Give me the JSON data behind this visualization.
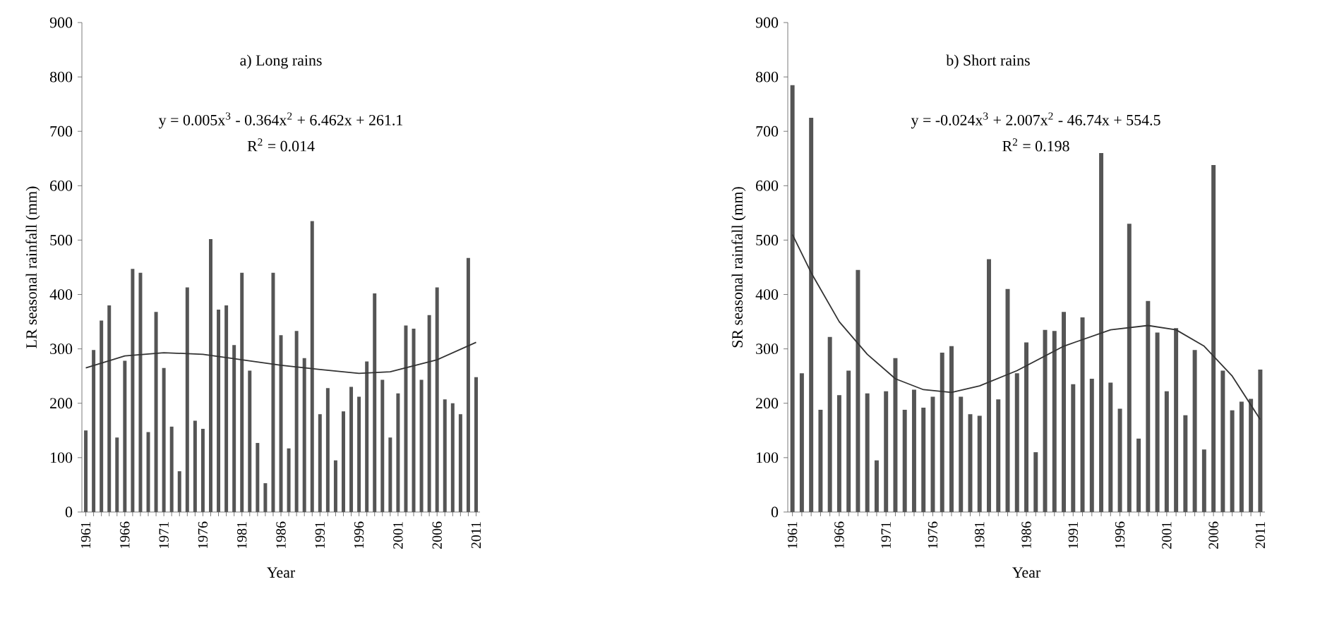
{
  "chart_data": [
    {
      "type": "bar",
      "title": "a) Long rains",
      "xlabel": "Year",
      "ylabel": "LR seasonal rainfall (mm)",
      "x": [
        1961,
        1962,
        1963,
        1964,
        1965,
        1966,
        1967,
        1968,
        1969,
        1970,
        1971,
        1972,
        1973,
        1974,
        1975,
        1976,
        1977,
        1978,
        1979,
        1980,
        1981,
        1982,
        1983,
        1984,
        1985,
        1986,
        1987,
        1988,
        1989,
        1990,
        1991,
        1992,
        1993,
        1994,
        1995,
        1996,
        1997,
        1998,
        1999,
        2000,
        2001,
        2002,
        2003,
        2004,
        2005,
        2006,
        2007,
        2008,
        2009,
        2010,
        2011
      ],
      "series": [
        {
          "color": "#555555",
          "values": [
            150,
            298,
            352,
            380,
            137,
            278,
            447,
            440,
            147,
            368,
            265,
            157,
            75,
            413,
            168,
            153,
            502,
            372,
            380,
            307,
            440,
            260,
            127,
            53,
            440,
            325,
            117,
            333,
            283,
            535,
            180,
            228,
            95,
            185,
            230,
            212,
            277,
            402,
            243,
            137,
            218,
            343,
            337,
            243,
            362,
            413,
            207,
            200,
            180,
            467,
            248
          ]
        },
        {
          "type": "line",
          "color": "#333333",
          "x": [
            1961,
            1966,
            1971,
            1976,
            1981,
            1986,
            1991,
            1996,
            2000,
            2006,
            2011
          ],
          "values": [
            265,
            287,
            293,
            290,
            280,
            270,
            262,
            255,
            258,
            280,
            312
          ]
        }
      ],
      "xlim": [
        1960.5,
        2011.5
      ],
      "xticks": [
        1961,
        {
          "value": 1962,
          "label": null
        },
        {
          "value": 1963,
          "label": null
        },
        {
          "value": 1964,
          "label": null
        },
        {
          "value": 1965,
          "label": null
        },
        1966,
        {
          "value": 1967,
          "label": null
        },
        {
          "value": 1968,
          "label": null
        },
        {
          "value": 1969,
          "label": null
        },
        {
          "value": 1970,
          "label": null
        },
        1971,
        {
          "value": 1972,
          "label": null
        },
        {
          "value": 1973,
          "label": null
        },
        {
          "value": 1974,
          "label": null
        },
        {
          "value": 1975,
          "label": null
        },
        1976,
        {
          "value": 1977,
          "label": null
        },
        {
          "value": 1978,
          "label": null
        },
        {
          "value": 1979,
          "label": null
        },
        {
          "value": 1980,
          "label": null
        },
        1981,
        {
          "value": 1982,
          "label": null
        },
        {
          "value": 1983,
          "label": null
        },
        {
          "value": 1984,
          "label": null
        },
        {
          "value": 1985,
          "label": null
        },
        1986,
        {
          "value": 1987,
          "label": null
        },
        {
          "value": 1988,
          "label": null
        },
        {
          "value": 1989,
          "label": null
        },
        {
          "value": 1990,
          "label": null
        },
        1991,
        {
          "value": 1992,
          "label": null
        },
        {
          "value": 1993,
          "label": null
        },
        {
          "value": 1994,
          "label": null
        },
        {
          "value": 1995,
          "label": null
        },
        1996,
        {
          "value": 1997,
          "label": null
        },
        {
          "value": 1998,
          "label": null
        },
        {
          "value": 1999,
          "label": null
        },
        {
          "value": 2000,
          "label": null
        },
        2001,
        {
          "value": 2002,
          "label": null
        },
        {
          "value": 2003,
          "label": null
        },
        {
          "value": 2004,
          "label": null
        },
        {
          "value": 2005,
          "label": null
        },
        2006,
        {
          "value": 2007,
          "label": null
        },
        {
          "value": 2008,
          "label": null
        },
        {
          "value": 2009,
          "label": null
        },
        {
          "value": 2010,
          "label": null
        },
        2011
      ],
      "ylim": [
        0,
        900
      ],
      "yticks": [
        0,
        100,
        200,
        300,
        400,
        500,
        600,
        700,
        800,
        900
      ],
      "annotations": [
        "y = 0.005x$^{3}$ - 0.364x$^{2}$ + 6.462x + 261.1",
        "R$^{2}$ = 0.014"
      ]
    },
    {
      "type": "bar",
      "title": "b) Short rains",
      "xlabel": "Year",
      "ylabel": "SR seasonal rainfall (mm)",
      "x": [
        1961,
        1962,
        1963,
        1964,
        1965,
        1966,
        1967,
        1968,
        1969,
        1970,
        1971,
        1972,
        1973,
        1974,
        1975,
        1976,
        1977,
        1978,
        1979,
        1980,
        1981,
        1982,
        1983,
        1984,
        1985,
        1986,
        1987,
        1988,
        1989,
        1990,
        1991,
        1992,
        1993,
        1994,
        1995,
        1996,
        1997,
        1998,
        1999,
        2000,
        2001,
        2002,
        2003,
        2004,
        2005,
        2006,
        2007,
        2008,
        2009,
        2010,
        2011
      ],
      "series": [
        {
          "color": "#555555",
          "values": [
            785,
            255,
            725,
            188,
            322,
            215,
            260,
            445,
            218,
            95,
            222,
            283,
            188,
            225,
            192,
            212,
            293,
            305,
            212,
            180,
            177,
            465,
            207,
            410,
            255,
            312,
            110,
            335,
            333,
            368,
            235,
            358,
            245,
            660,
            238,
            190,
            530,
            135,
            388,
            330,
            222,
            338,
            178,
            298,
            115,
            638,
            260,
            187,
            203,
            208,
            262
          ]
        },
        {
          "type": "line",
          "color": "#333333",
          "x": [
            1961,
            1963,
            1966,
            1969,
            1972,
            1975,
            1978,
            1981,
            1985,
            1990,
            1995,
            1999,
            2002,
            2005,
            2008,
            2011
          ],
          "values": [
            510,
            440,
            350,
            290,
            245,
            225,
            220,
            232,
            260,
            305,
            335,
            343,
            335,
            305,
            250,
            170
          ]
        }
      ],
      "xlim": [
        1960.5,
        2011.5
      ],
      "xticks": [
        1961,
        {
          "value": 1962,
          "label": null
        },
        {
          "value": 1963,
          "label": null
        },
        {
          "value": 1964,
          "label": null
        },
        {
          "value": 1965,
          "label": null
        },
        1966,
        {
          "value": 1967,
          "label": null
        },
        {
          "value": 1968,
          "label": null
        },
        {
          "value": 1969,
          "label": null
        },
        {
          "value": 1970,
          "label": null
        },
        1971,
        {
          "value": 1972,
          "label": null
        },
        {
          "value": 1973,
          "label": null
        },
        {
          "value": 1974,
          "label": null
        },
        {
          "value": 1975,
          "label": null
        },
        1976,
        {
          "value": 1977,
          "label": null
        },
        {
          "value": 1978,
          "label": null
        },
        {
          "value": 1979,
          "label": null
        },
        {
          "value": 1980,
          "label": null
        },
        1981,
        {
          "value": 1982,
          "label": null
        },
        {
          "value": 1983,
          "label": null
        },
        {
          "value": 1984,
          "label": null
        },
        {
          "value": 1985,
          "label": null
        },
        1986,
        {
          "value": 1987,
          "label": null
        },
        {
          "value": 1988,
          "label": null
        },
        {
          "value": 1989,
          "label": null
        },
        {
          "value": 1990,
          "label": null
        },
        1991,
        {
          "value": 1992,
          "label": null
        },
        {
          "value": 1993,
          "label": null
        },
        {
          "value": 1994,
          "label": null
        },
        {
          "value": 1995,
          "label": null
        },
        1996,
        {
          "value": 1997,
          "label": null
        },
        {
          "value": 1998,
          "label": null
        },
        {
          "value": 1999,
          "label": null
        },
        {
          "value": 2000,
          "label": null
        },
        2001,
        {
          "value": 2002,
          "label": null
        },
        {
          "value": 2003,
          "label": null
        },
        {
          "value": 2004,
          "label": null
        },
        {
          "value": 2005,
          "label": null
        },
        2006,
        {
          "value": 2007,
          "label": null
        },
        {
          "value": 2008,
          "label": null
        },
        {
          "value": 2009,
          "label": null
        },
        {
          "value": 2010,
          "label": null
        },
        2011
      ],
      "ylim": [
        0,
        900
      ],
      "yticks": [
        0,
        100,
        200,
        300,
        400,
        500,
        600,
        700,
        800,
        900
      ],
      "annotations": [
        "y = -0.024x$^{3}$ + 2.007x$^{2}$ - 46.74x + 554.5",
        "R$^{2}$ = 0.198"
      ]
    }
  ]
}
